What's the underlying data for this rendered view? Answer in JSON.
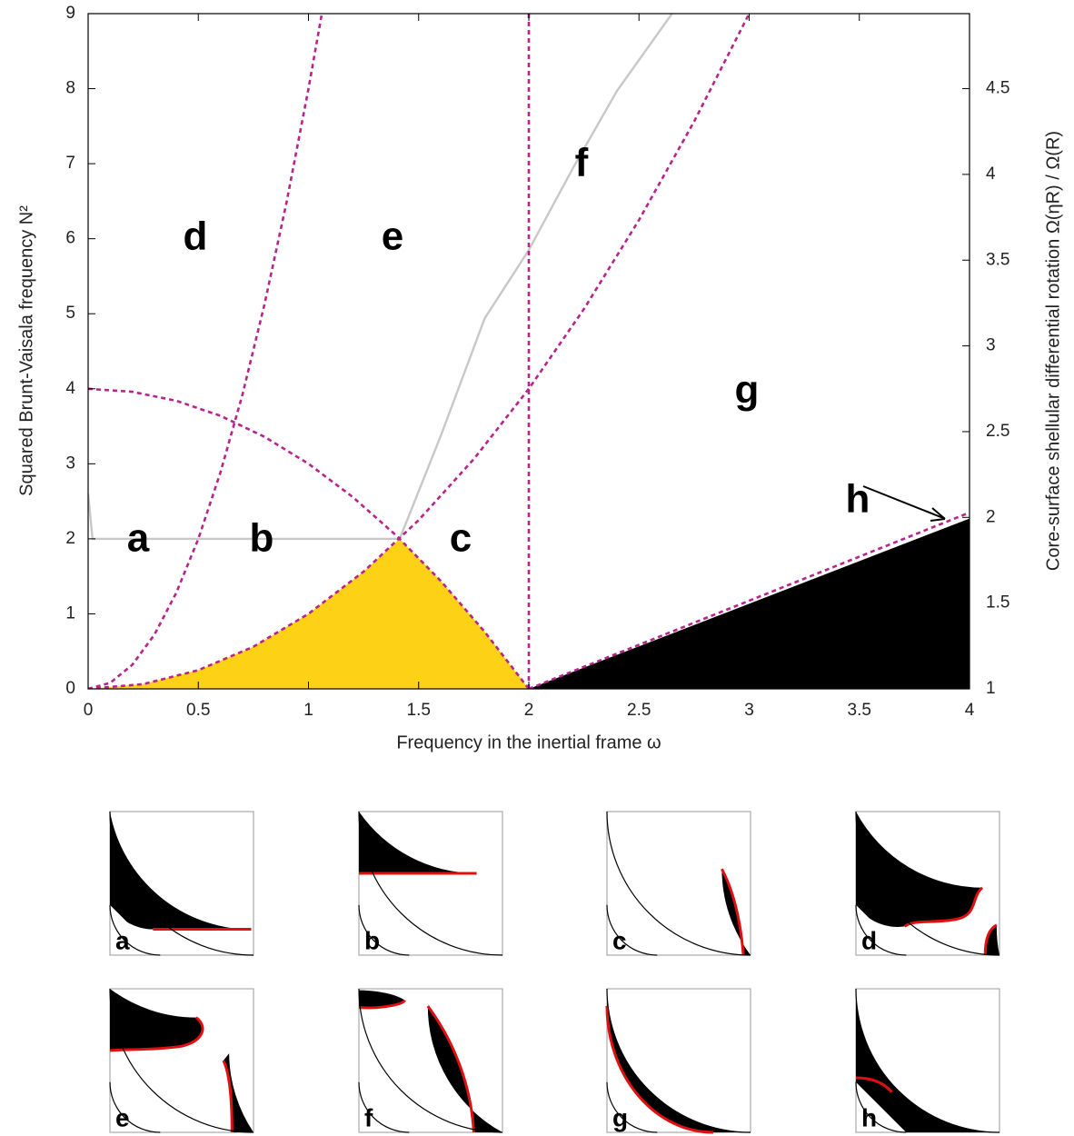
{
  "chart_data": {
    "type": "line",
    "xlabel": "Frequency in the inertial frame ω",
    "ylabel": "Squared Brunt-Vaisala frequency N²",
    "y2label": "Core-surface shellular differential rotation Ω(ηR) / Ω(R)",
    "xlim": [
      0,
      4
    ],
    "xticks": [
      0,
      0.5,
      1,
      1.5,
      2,
      2.5,
      3,
      3.5,
      4
    ],
    "ylim": [
      0,
      9
    ],
    "yticks": [
      0,
      1,
      2,
      3,
      4,
      5,
      6,
      7,
      8,
      9
    ],
    "y2lim": [
      1,
      4.9375
    ],
    "y2ticks": [
      1,
      1.5,
      2,
      2.5,
      3,
      3.5,
      4,
      4.5
    ],
    "series": [
      {
        "style": "fill",
        "color": "#fcd116",
        "x": [
          0,
          0.25,
          0.5,
          0.75,
          1,
          1.25,
          1.4142,
          1.6,
          1.8,
          2
        ],
        "values": [
          0,
          0.0625,
          0.25,
          0.5625,
          1,
          1.5625,
          2,
          1.44,
          0.76,
          0
        ]
      },
      {
        "style": "fill",
        "color": "#000000",
        "x": [
          2,
          4
        ],
        "values": [
          0,
          2.27
        ]
      },
      {
        "style": "solid",
        "color": "#c8c8c8",
        "x": [
          0,
          0.02,
          1.4142,
          1.6,
          1.8,
          2,
          2.2,
          2.4,
          2.65
        ],
        "values": [
          2.6,
          2,
          2,
          3.37,
          4.94,
          5.85,
          6.94,
          7.97,
          9
        ]
      },
      {
        "style": "dashed",
        "color": "#b8248c",
        "x": [
          0,
          0.1,
          0.2,
          0.3,
          0.4,
          0.5,
          0.6,
          0.7,
          0.8,
          0.9,
          1.0,
          1.0607
        ],
        "values": [
          0,
          0.08,
          0.32,
          0.72,
          1.28,
          2,
          2.88,
          3.92,
          5.12,
          6.48,
          8,
          9
        ]
      },
      {
        "style": "dashed",
        "color": "#b8248c",
        "x": [
          0,
          0.2,
          0.4,
          0.6,
          0.8,
          1,
          1.2,
          1.4,
          1.6,
          1.8,
          2
        ],
        "values": [
          4,
          3.96,
          3.84,
          3.64,
          3.36,
          3,
          2.56,
          2.04,
          1.44,
          0.76,
          0
        ]
      },
      {
        "style": "dashed",
        "color": "#b8248c",
        "x": [
          0,
          0.25,
          0.5,
          0.75,
          1,
          1.25,
          1.5,
          1.75,
          2,
          2.25,
          2.5,
          2.75,
          3
        ],
        "values": [
          0,
          0.0625,
          0.25,
          0.5625,
          1,
          1.5625,
          2.25,
          3.0625,
          4,
          5.0625,
          6.25,
          7.5625,
          9
        ]
      },
      {
        "style": "dashed",
        "color": "#b8248c",
        "x": [
          2,
          2
        ],
        "values": [
          0,
          9
        ]
      },
      {
        "style": "dashed",
        "color": "#b8248c",
        "x": [
          2,
          4
        ],
        "values": [
          0,
          2.35
        ]
      }
    ],
    "annotations": [
      "a",
      "b",
      "c",
      "d",
      "e",
      "f",
      "g",
      "h"
    ],
    "panels": [
      "a",
      "b",
      "c",
      "d",
      "e",
      "f",
      "g",
      "h"
    ]
  }
}
